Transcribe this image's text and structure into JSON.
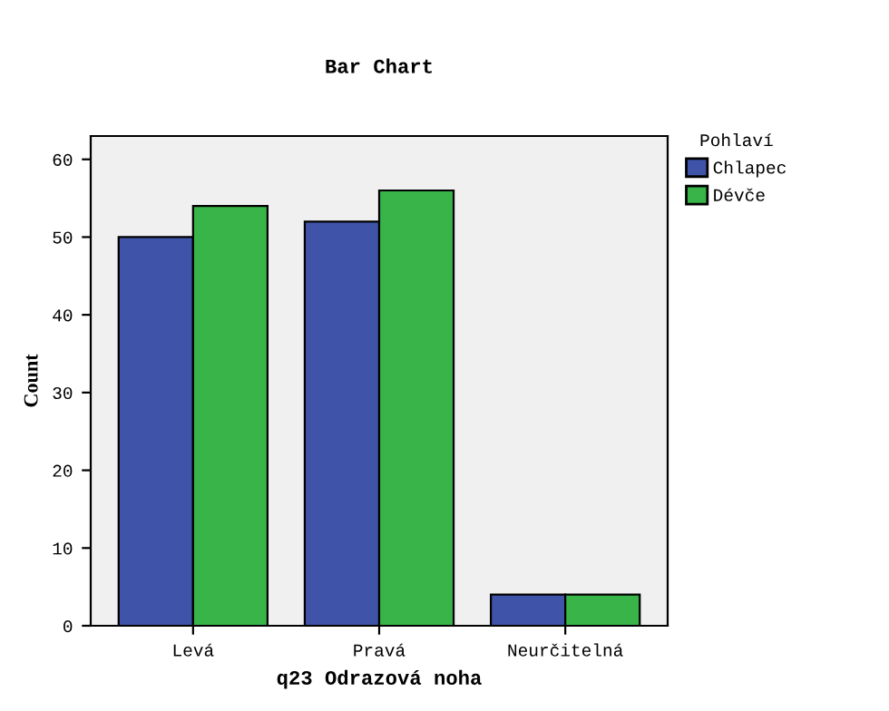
{
  "chart_data": {
    "type": "bar",
    "title": "Bar Chart",
    "xlabel": "q23 Odrazová noha",
    "ylabel": "Count",
    "legend_title": "Pohlaví",
    "categories": [
      "Levá",
      "Pravá",
      "Neurčitelná"
    ],
    "series": [
      {
        "name": "Chlapec",
        "color": "#3f54a8",
        "values": [
          50,
          52,
          4
        ]
      },
      {
        "name": "Dévče",
        "color": "#38b449",
        "values": [
          54,
          56,
          4
        ]
      }
    ],
    "ylim": [
      0,
      63
    ],
    "yticks": [
      0,
      10,
      20,
      30,
      40,
      50,
      60
    ],
    "grid": false,
    "legend": "top right"
  }
}
